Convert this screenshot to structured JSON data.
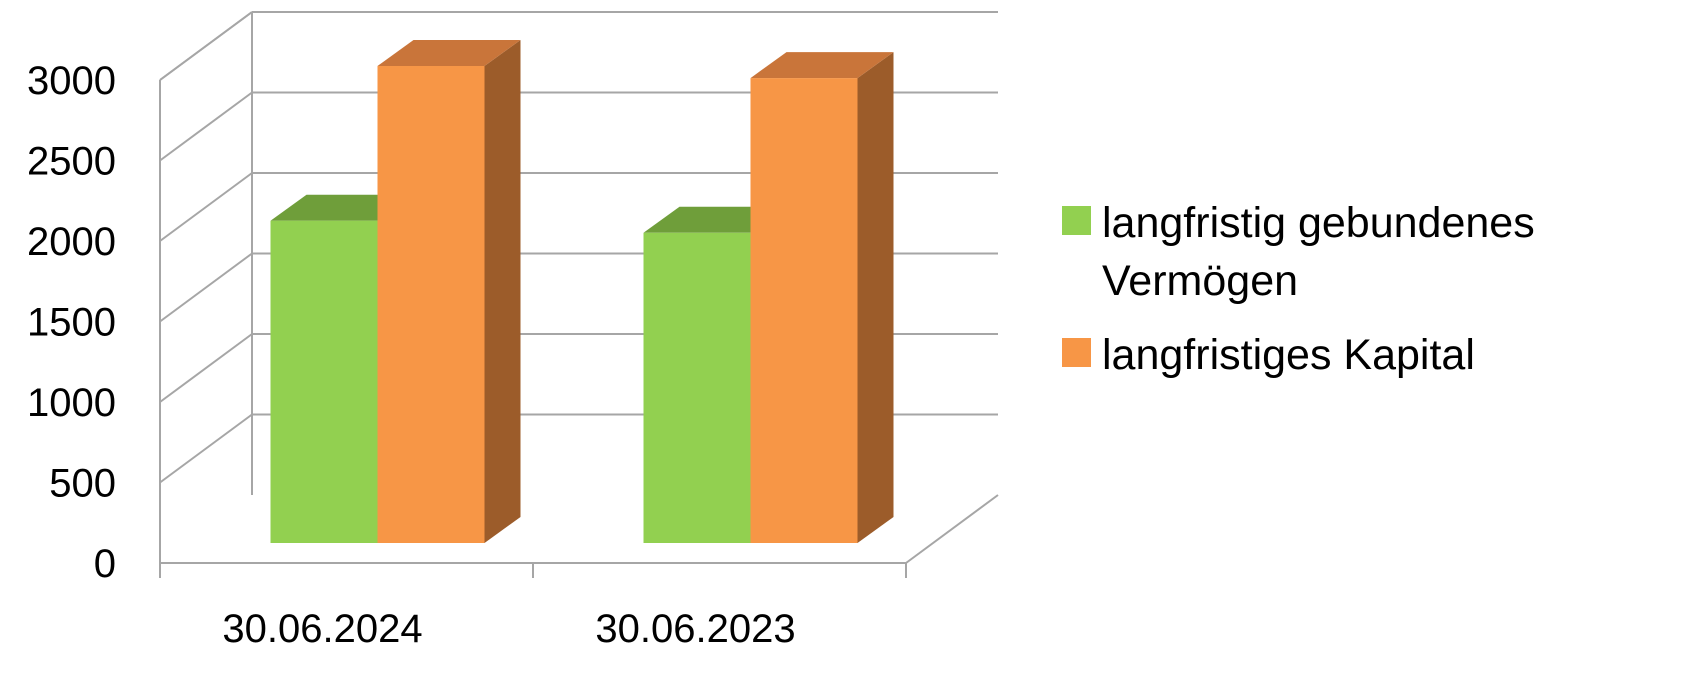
{
  "chart_data": {
    "type": "bar",
    "categories": [
      "30.06.2024",
      "30.06.2023"
    ],
    "series": [
      {
        "name": "langfristig gebundenes Vermögen",
        "legend_lines": [
          "langfristig gebundenes",
          "Vermögen"
        ],
        "values": [
          2000,
          1925
        ],
        "color": "#92d050",
        "top_color": "#6f9e3a"
      },
      {
        "name": "langfristiges Kapital",
        "legend_lines": [
          "langfristiges Kapital"
        ],
        "values": [
          2960,
          2885
        ],
        "color": "#f79646",
        "top_color": "#c9753a",
        "side_color": "#9c5c2a"
      }
    ],
    "yticks": [
      0,
      500,
      1000,
      1500,
      2000,
      2500,
      3000
    ],
    "ylim": [
      0,
      3000
    ],
    "grid": true,
    "legend_position": "right",
    "style": "3d-clustered-column",
    "colors": {
      "grid": "#a6a6a6",
      "text": "#000000"
    }
  }
}
